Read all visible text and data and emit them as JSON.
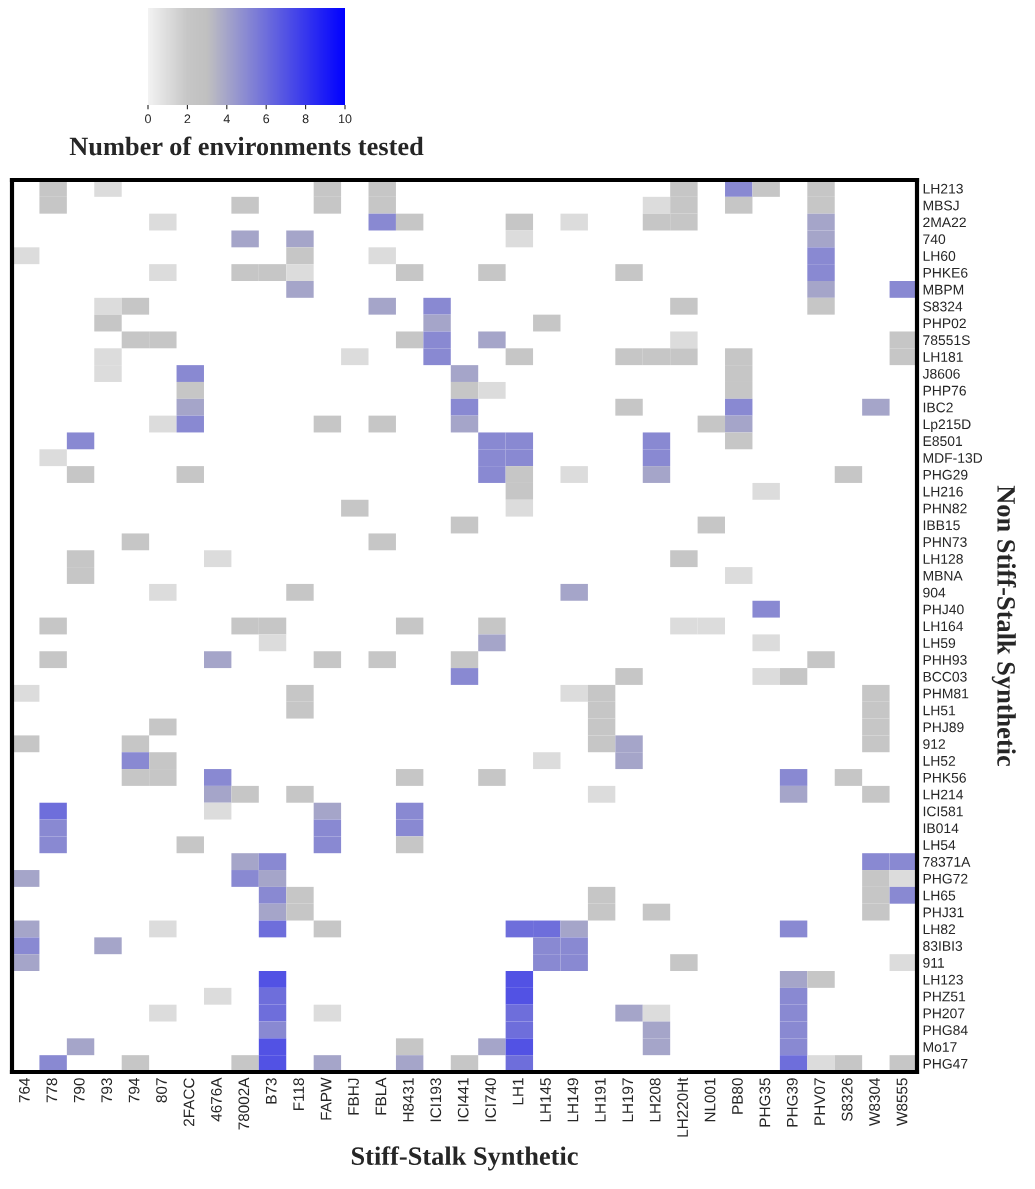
{
  "chart_data": {
    "type": "heatmap",
    "xlabel": "Stiff-Stalk Synthetic",
    "ylabel": "Non Stiff-Stalk Synthetic",
    "clabel": "Number of environments tested",
    "clim": [
      0,
      10
    ],
    "cticks": [
      0,
      2,
      4,
      6,
      8,
      10
    ],
    "categories": [
      "764",
      "778",
      "790",
      "793",
      "794",
      "807",
      "2FACC",
      "4676A",
      "78002A",
      "B73",
      "F118",
      "FAPW",
      "FBHJ",
      "FBLA",
      "H8431",
      "ICI193",
      "ICI441",
      "ICI740",
      "LH1",
      "LH145",
      "LH149",
      "LH191",
      "LH197",
      "LH208",
      "LH220Ht",
      "NL001",
      "PB80",
      "PHG35",
      "PHG39",
      "PHV07",
      "S8326",
      "W8304",
      "W8555"
    ],
    "y_categories": [
      "LH213",
      "MBSJ",
      "2MA22",
      "740",
      "LH60",
      "PHKE6",
      "MBPM",
      "S8324",
      "PHP02",
      "78551S",
      "LH181",
      "J8606",
      "PHP76",
      "IBC2",
      "Lp215D",
      "E8501",
      "MDF-13D",
      "PHG29",
      "LH216",
      "PHN82",
      "IBB15",
      "PHN73",
      "LH128",
      "MBNA",
      "904",
      "PHJ40",
      "LH164",
      "LH59",
      "PHH93",
      "BCC03",
      "PHM81",
      "LH51",
      "PHJ89",
      "912",
      "LH52",
      "PHK56",
      "LH214",
      "ICI581",
      "IB014",
      "LH54",
      "78371A",
      "PHG72",
      "LH65",
      "PHJ31",
      "LH82",
      "83IBI3",
      "911",
      "LH123",
      "PHZ51",
      "PH207",
      "PHG84",
      "Mo17",
      "PHG47"
    ],
    "cells": [
      [
        null,
        2,
        null,
        1,
        null,
        null,
        null,
        null,
        null,
        null,
        null,
        2,
        null,
        2,
        null,
        null,
        null,
        null,
        null,
        null,
        null,
        null,
        null,
        null,
        2,
        null,
        5,
        2,
        null,
        2,
        null,
        null,
        null
      ],
      [
        null,
        2,
        null,
        null,
        null,
        null,
        null,
        null,
        2,
        null,
        null,
        2,
        null,
        2,
        null,
        null,
        null,
        null,
        null,
        null,
        null,
        null,
        null,
        1,
        2,
        null,
        2,
        null,
        null,
        2,
        null,
        null,
        null
      ],
      [
        null,
        null,
        null,
        null,
        null,
        1,
        null,
        null,
        null,
        null,
        null,
        null,
        null,
        5,
        2,
        null,
        null,
        null,
        2,
        null,
        1,
        null,
        null,
        2,
        2,
        null,
        null,
        null,
        null,
        4,
        null,
        null,
        null
      ],
      [
        null,
        null,
        null,
        null,
        null,
        null,
        null,
        null,
        4,
        null,
        4,
        null,
        null,
        null,
        null,
        null,
        null,
        null,
        1,
        null,
        null,
        null,
        null,
        null,
        null,
        null,
        null,
        null,
        null,
        4,
        null,
        null,
        null
      ],
      [
        1,
        null,
        null,
        null,
        null,
        null,
        null,
        null,
        null,
        null,
        2,
        null,
        null,
        1,
        null,
        null,
        null,
        null,
        null,
        null,
        null,
        null,
        null,
        null,
        null,
        null,
        null,
        null,
        null,
        5,
        null,
        null,
        null
      ],
      [
        null,
        null,
        null,
        null,
        null,
        1,
        null,
        null,
        2,
        2,
        1,
        null,
        null,
        null,
        2,
        null,
        null,
        2,
        null,
        null,
        null,
        null,
        2,
        null,
        null,
        null,
        null,
        null,
        null,
        5,
        null,
        null,
        null
      ],
      [
        null,
        null,
        null,
        null,
        null,
        null,
        null,
        null,
        null,
        null,
        4,
        null,
        null,
        null,
        null,
        null,
        null,
        null,
        null,
        null,
        null,
        null,
        null,
        null,
        null,
        null,
        null,
        null,
        null,
        4,
        null,
        null,
        5
      ],
      [
        null,
        null,
        null,
        1,
        2,
        null,
        null,
        null,
        null,
        null,
        null,
        null,
        null,
        4,
        null,
        5,
        null,
        null,
        null,
        null,
        null,
        null,
        null,
        null,
        2,
        null,
        null,
        null,
        null,
        2,
        null,
        null,
        null
      ],
      [
        null,
        null,
        null,
        2,
        null,
        null,
        null,
        null,
        null,
        null,
        null,
        null,
        null,
        null,
        null,
        4,
        null,
        null,
        null,
        2,
        null,
        null,
        null,
        null,
        null,
        null,
        null,
        null,
        null,
        null,
        null,
        null,
        null
      ],
      [
        null,
        null,
        null,
        null,
        2,
        2,
        null,
        null,
        null,
        null,
        null,
        null,
        null,
        null,
        2,
        5,
        null,
        4,
        null,
        null,
        null,
        null,
        null,
        null,
        1,
        null,
        null,
        null,
        null,
        null,
        null,
        null,
        2
      ],
      [
        null,
        null,
        null,
        1,
        null,
        null,
        null,
        null,
        null,
        null,
        null,
        null,
        1,
        null,
        null,
        5,
        null,
        null,
        2,
        null,
        null,
        null,
        2,
        2,
        2,
        null,
        2,
        null,
        null,
        null,
        null,
        null,
        2
      ],
      [
        null,
        null,
        null,
        1,
        null,
        null,
        5,
        null,
        null,
        null,
        null,
        null,
        null,
        null,
        null,
        null,
        4,
        null,
        null,
        null,
        null,
        null,
        null,
        null,
        null,
        null,
        2,
        null,
        null,
        null,
        null,
        null,
        null
      ],
      [
        null,
        null,
        null,
        null,
        null,
        null,
        2,
        null,
        null,
        null,
        null,
        null,
        null,
        null,
        null,
        null,
        2,
        1,
        null,
        null,
        null,
        null,
        null,
        null,
        null,
        null,
        2,
        null,
        null,
        null,
        null,
        null,
        null
      ],
      [
        null,
        null,
        null,
        null,
        null,
        null,
        4,
        null,
        null,
        null,
        null,
        null,
        null,
        null,
        null,
        null,
        5,
        null,
        null,
        null,
        null,
        null,
        2,
        null,
        null,
        null,
        5,
        null,
        null,
        null,
        null,
        4,
        null
      ],
      [
        null,
        null,
        null,
        null,
        null,
        1,
        5,
        null,
        null,
        null,
        null,
        2,
        null,
        2,
        null,
        null,
        4,
        null,
        null,
        null,
        null,
        null,
        null,
        null,
        null,
        2,
        4,
        null,
        null,
        null,
        null,
        null,
        null
      ],
      [
        null,
        null,
        5,
        null,
        null,
        null,
        null,
        null,
        null,
        null,
        null,
        null,
        null,
        null,
        null,
        null,
        null,
        5,
        5,
        null,
        null,
        null,
        null,
        5,
        null,
        null,
        2,
        null,
        null,
        null,
        null,
        null,
        null
      ],
      [
        null,
        1,
        null,
        null,
        null,
        null,
        null,
        null,
        null,
        null,
        null,
        null,
        null,
        null,
        null,
        null,
        null,
        5,
        5,
        null,
        null,
        null,
        null,
        5,
        null,
        null,
        null,
        null,
        null,
        null,
        null,
        null,
        null
      ],
      [
        null,
        null,
        2,
        null,
        null,
        null,
        2,
        null,
        null,
        null,
        null,
        null,
        null,
        null,
        null,
        null,
        null,
        5,
        2,
        null,
        1,
        null,
        null,
        4,
        null,
        null,
        null,
        null,
        null,
        null,
        2,
        null,
        null
      ],
      [
        null,
        null,
        null,
        null,
        null,
        null,
        null,
        null,
        null,
        null,
        null,
        null,
        null,
        null,
        null,
        null,
        null,
        null,
        2,
        null,
        null,
        null,
        null,
        null,
        null,
        null,
        null,
        1,
        null,
        null,
        null,
        null,
        null
      ],
      [
        null,
        null,
        null,
        null,
        null,
        null,
        null,
        null,
        null,
        null,
        null,
        null,
        2,
        null,
        null,
        null,
        null,
        null,
        1,
        null,
        null,
        null,
        null,
        null,
        null,
        null,
        null,
        null,
        null,
        null,
        null,
        null,
        null
      ],
      [
        null,
        null,
        null,
        null,
        null,
        null,
        null,
        null,
        null,
        null,
        null,
        null,
        null,
        null,
        null,
        null,
        2,
        null,
        null,
        null,
        null,
        null,
        null,
        null,
        null,
        2,
        null,
        null,
        null,
        null,
        null,
        null,
        null
      ],
      [
        null,
        null,
        null,
        null,
        2,
        null,
        null,
        null,
        null,
        null,
        null,
        null,
        null,
        2,
        null,
        null,
        null,
        null,
        null,
        null,
        null,
        null,
        null,
        null,
        null,
        null,
        null,
        null,
        null,
        null,
        null,
        null,
        null
      ],
      [
        null,
        null,
        2,
        null,
        null,
        null,
        null,
        1,
        null,
        null,
        null,
        null,
        null,
        null,
        null,
        null,
        null,
        null,
        null,
        null,
        null,
        null,
        null,
        null,
        2,
        null,
        null,
        null,
        null,
        null,
        null,
        null,
        null
      ],
      [
        null,
        null,
        2,
        null,
        null,
        null,
        null,
        null,
        null,
        null,
        null,
        null,
        null,
        null,
        null,
        null,
        null,
        null,
        null,
        null,
        null,
        null,
        null,
        null,
        null,
        null,
        1,
        null,
        null,
        null,
        null,
        null,
        null
      ],
      [
        null,
        null,
        null,
        null,
        null,
        1,
        null,
        null,
        null,
        null,
        2,
        null,
        null,
        null,
        null,
        null,
        null,
        null,
        null,
        null,
        4,
        null,
        null,
        null,
        null,
        null,
        null,
        null,
        null,
        null,
        null,
        null,
        null
      ],
      [
        null,
        null,
        null,
        null,
        null,
        null,
        null,
        null,
        null,
        null,
        null,
        null,
        null,
        null,
        null,
        null,
        null,
        null,
        null,
        null,
        null,
        null,
        null,
        null,
        null,
        null,
        null,
        5,
        null,
        null,
        null,
        null,
        null
      ],
      [
        null,
        2,
        null,
        null,
        null,
        null,
        null,
        null,
        2,
        2,
        null,
        null,
        null,
        null,
        2,
        null,
        null,
        2,
        null,
        null,
        null,
        null,
        null,
        null,
        1,
        1,
        null,
        null,
        null,
        null,
        null,
        null,
        null
      ],
      [
        null,
        null,
        null,
        null,
        null,
        null,
        null,
        null,
        null,
        1,
        null,
        null,
        null,
        null,
        null,
        null,
        null,
        4,
        null,
        null,
        null,
        null,
        null,
        null,
        null,
        null,
        null,
        1,
        null,
        null,
        null,
        null,
        null
      ],
      [
        null,
        2,
        null,
        null,
        null,
        null,
        null,
        4,
        null,
        null,
        null,
        2,
        null,
        2,
        null,
        null,
        2,
        null,
        null,
        null,
        null,
        null,
        null,
        null,
        null,
        null,
        null,
        null,
        null,
        2,
        null,
        null,
        null
      ],
      [
        null,
        null,
        null,
        null,
        null,
        null,
        null,
        null,
        null,
        null,
        null,
        null,
        null,
        null,
        null,
        null,
        5,
        null,
        null,
        null,
        null,
        null,
        2,
        null,
        null,
        null,
        null,
        1,
        2,
        null,
        null,
        null,
        null
      ],
      [
        1,
        null,
        null,
        null,
        null,
        null,
        null,
        null,
        null,
        null,
        2,
        null,
        null,
        null,
        null,
        null,
        null,
        null,
        null,
        null,
        1,
        2,
        null,
        null,
        null,
        null,
        null,
        null,
        null,
        null,
        null,
        2,
        null
      ],
      [
        null,
        null,
        null,
        null,
        null,
        null,
        null,
        null,
        null,
        null,
        2,
        null,
        null,
        null,
        null,
        null,
        null,
        null,
        null,
        null,
        null,
        2,
        null,
        null,
        null,
        null,
        null,
        null,
        null,
        null,
        null,
        2,
        null
      ],
      [
        null,
        null,
        null,
        null,
        null,
        2,
        null,
        null,
        null,
        null,
        null,
        null,
        null,
        null,
        null,
        null,
        null,
        null,
        null,
        null,
        null,
        2,
        null,
        null,
        null,
        null,
        null,
        null,
        null,
        null,
        null,
        2,
        null
      ],
      [
        2,
        null,
        null,
        null,
        2,
        null,
        null,
        null,
        null,
        null,
        null,
        null,
        null,
        null,
        null,
        null,
        null,
        null,
        null,
        null,
        null,
        2,
        4,
        null,
        null,
        null,
        null,
        null,
        null,
        null,
        null,
        2,
        null
      ],
      [
        null,
        null,
        null,
        null,
        5,
        2,
        null,
        null,
        null,
        null,
        null,
        null,
        null,
        null,
        null,
        null,
        null,
        null,
        null,
        1,
        null,
        null,
        4,
        null,
        null,
        null,
        null,
        null,
        null,
        null,
        null,
        null,
        null
      ],
      [
        null,
        null,
        null,
        null,
        2,
        2,
        null,
        5,
        null,
        null,
        null,
        null,
        null,
        null,
        2,
        null,
        null,
        2,
        null,
        null,
        null,
        null,
        null,
        null,
        null,
        null,
        null,
        null,
        5,
        null,
        2,
        null,
        null
      ],
      [
        null,
        null,
        null,
        null,
        null,
        null,
        null,
        4,
        2,
        null,
        2,
        null,
        null,
        null,
        null,
        null,
        null,
        null,
        null,
        null,
        null,
        1,
        null,
        null,
        null,
        null,
        null,
        null,
        4,
        null,
        null,
        2,
        null
      ],
      [
        null,
        6,
        null,
        null,
        null,
        null,
        null,
        1,
        null,
        null,
        null,
        4,
        null,
        null,
        5,
        null,
        null,
        null,
        null,
        null,
        null,
        null,
        null,
        null,
        null,
        null,
        null,
        null,
        null,
        null,
        null,
        null,
        null
      ],
      [
        null,
        5,
        null,
        null,
        null,
        null,
        null,
        null,
        null,
        null,
        null,
        5,
        null,
        null,
        5,
        null,
        null,
        null,
        null,
        null,
        null,
        null,
        null,
        null,
        null,
        null,
        null,
        null,
        null,
        null,
        null,
        null,
        null
      ],
      [
        null,
        5,
        null,
        null,
        null,
        null,
        2,
        null,
        null,
        null,
        null,
        5,
        null,
        null,
        2,
        null,
        null,
        null,
        null,
        null,
        null,
        null,
        null,
        null,
        null,
        null,
        null,
        null,
        null,
        null,
        null,
        null,
        null
      ],
      [
        null,
        null,
        null,
        null,
        null,
        null,
        null,
        null,
        4,
        5,
        null,
        null,
        null,
        null,
        null,
        null,
        null,
        null,
        null,
        null,
        null,
        null,
        null,
        null,
        null,
        null,
        null,
        null,
        null,
        null,
        null,
        5,
        5
      ],
      [
        4,
        null,
        null,
        null,
        null,
        null,
        null,
        null,
        5,
        4,
        null,
        null,
        null,
        null,
        null,
        null,
        null,
        null,
        null,
        null,
        null,
        null,
        null,
        null,
        null,
        null,
        null,
        null,
        null,
        null,
        null,
        2,
        1
      ],
      [
        null,
        null,
        null,
        null,
        null,
        null,
        null,
        null,
        null,
        5,
        2,
        null,
        null,
        null,
        null,
        null,
        null,
        null,
        null,
        null,
        null,
        2,
        null,
        null,
        null,
        null,
        null,
        null,
        null,
        null,
        null,
        2,
        5
      ],
      [
        null,
        null,
        null,
        null,
        null,
        null,
        null,
        null,
        null,
        4,
        2,
        null,
        null,
        null,
        null,
        null,
        null,
        null,
        null,
        null,
        null,
        2,
        null,
        2,
        null,
        null,
        null,
        null,
        null,
        null,
        null,
        2,
        null
      ],
      [
        4,
        null,
        null,
        null,
        null,
        1,
        null,
        null,
        null,
        6,
        null,
        2,
        null,
        null,
        null,
        null,
        null,
        null,
        6,
        6,
        4,
        null,
        null,
        null,
        null,
        null,
        null,
        null,
        5,
        null,
        null,
        null,
        null
      ],
      [
        5,
        null,
        null,
        4,
        null,
        null,
        null,
        null,
        null,
        null,
        null,
        null,
        null,
        null,
        null,
        null,
        null,
        null,
        null,
        5,
        5,
        null,
        null,
        null,
        null,
        null,
        null,
        null,
        null,
        null,
        null,
        null,
        null
      ],
      [
        4,
        null,
        null,
        null,
        null,
        null,
        null,
        null,
        null,
        null,
        null,
        null,
        null,
        null,
        null,
        null,
        null,
        null,
        null,
        5,
        5,
        null,
        null,
        null,
        2,
        null,
        null,
        null,
        null,
        null,
        null,
        null,
        1
      ],
      [
        null,
        null,
        null,
        null,
        null,
        null,
        null,
        null,
        null,
        7,
        null,
        null,
        null,
        null,
        null,
        null,
        null,
        null,
        7,
        null,
        null,
        null,
        null,
        null,
        null,
        null,
        null,
        null,
        4,
        2,
        null,
        null,
        null
      ],
      [
        null,
        null,
        null,
        null,
        null,
        null,
        null,
        1,
        null,
        6,
        null,
        null,
        null,
        null,
        null,
        null,
        null,
        null,
        7,
        null,
        null,
        null,
        null,
        null,
        null,
        null,
        null,
        null,
        5,
        null,
        null,
        null,
        null
      ],
      [
        null,
        null,
        null,
        null,
        null,
        1,
        null,
        null,
        null,
        6,
        null,
        1,
        null,
        null,
        null,
        null,
        null,
        null,
        6,
        null,
        null,
        null,
        4,
        1,
        null,
        null,
        null,
        null,
        5,
        null,
        null,
        null,
        null
      ],
      [
        null,
        null,
        null,
        null,
        null,
        null,
        null,
        null,
        null,
        5,
        null,
        null,
        null,
        null,
        null,
        null,
        null,
        null,
        6,
        null,
        null,
        null,
        null,
        4,
        null,
        null,
        null,
        null,
        5,
        null,
        null,
        null,
        null
      ],
      [
        null,
        null,
        4,
        null,
        null,
        null,
        null,
        null,
        null,
        7,
        null,
        null,
        null,
        null,
        2,
        null,
        null,
        4,
        7,
        null,
        null,
        null,
        null,
        4,
        null,
        null,
        null,
        null,
        5,
        null,
        null,
        null,
        null
      ],
      [
        null,
        5,
        null,
        null,
        2,
        null,
        null,
        null,
        2,
        7,
        null,
        4,
        null,
        null,
        4,
        null,
        2,
        null,
        6,
        null,
        null,
        null,
        null,
        null,
        null,
        null,
        null,
        null,
        6,
        1,
        2,
        null,
        2
      ]
    ]
  }
}
